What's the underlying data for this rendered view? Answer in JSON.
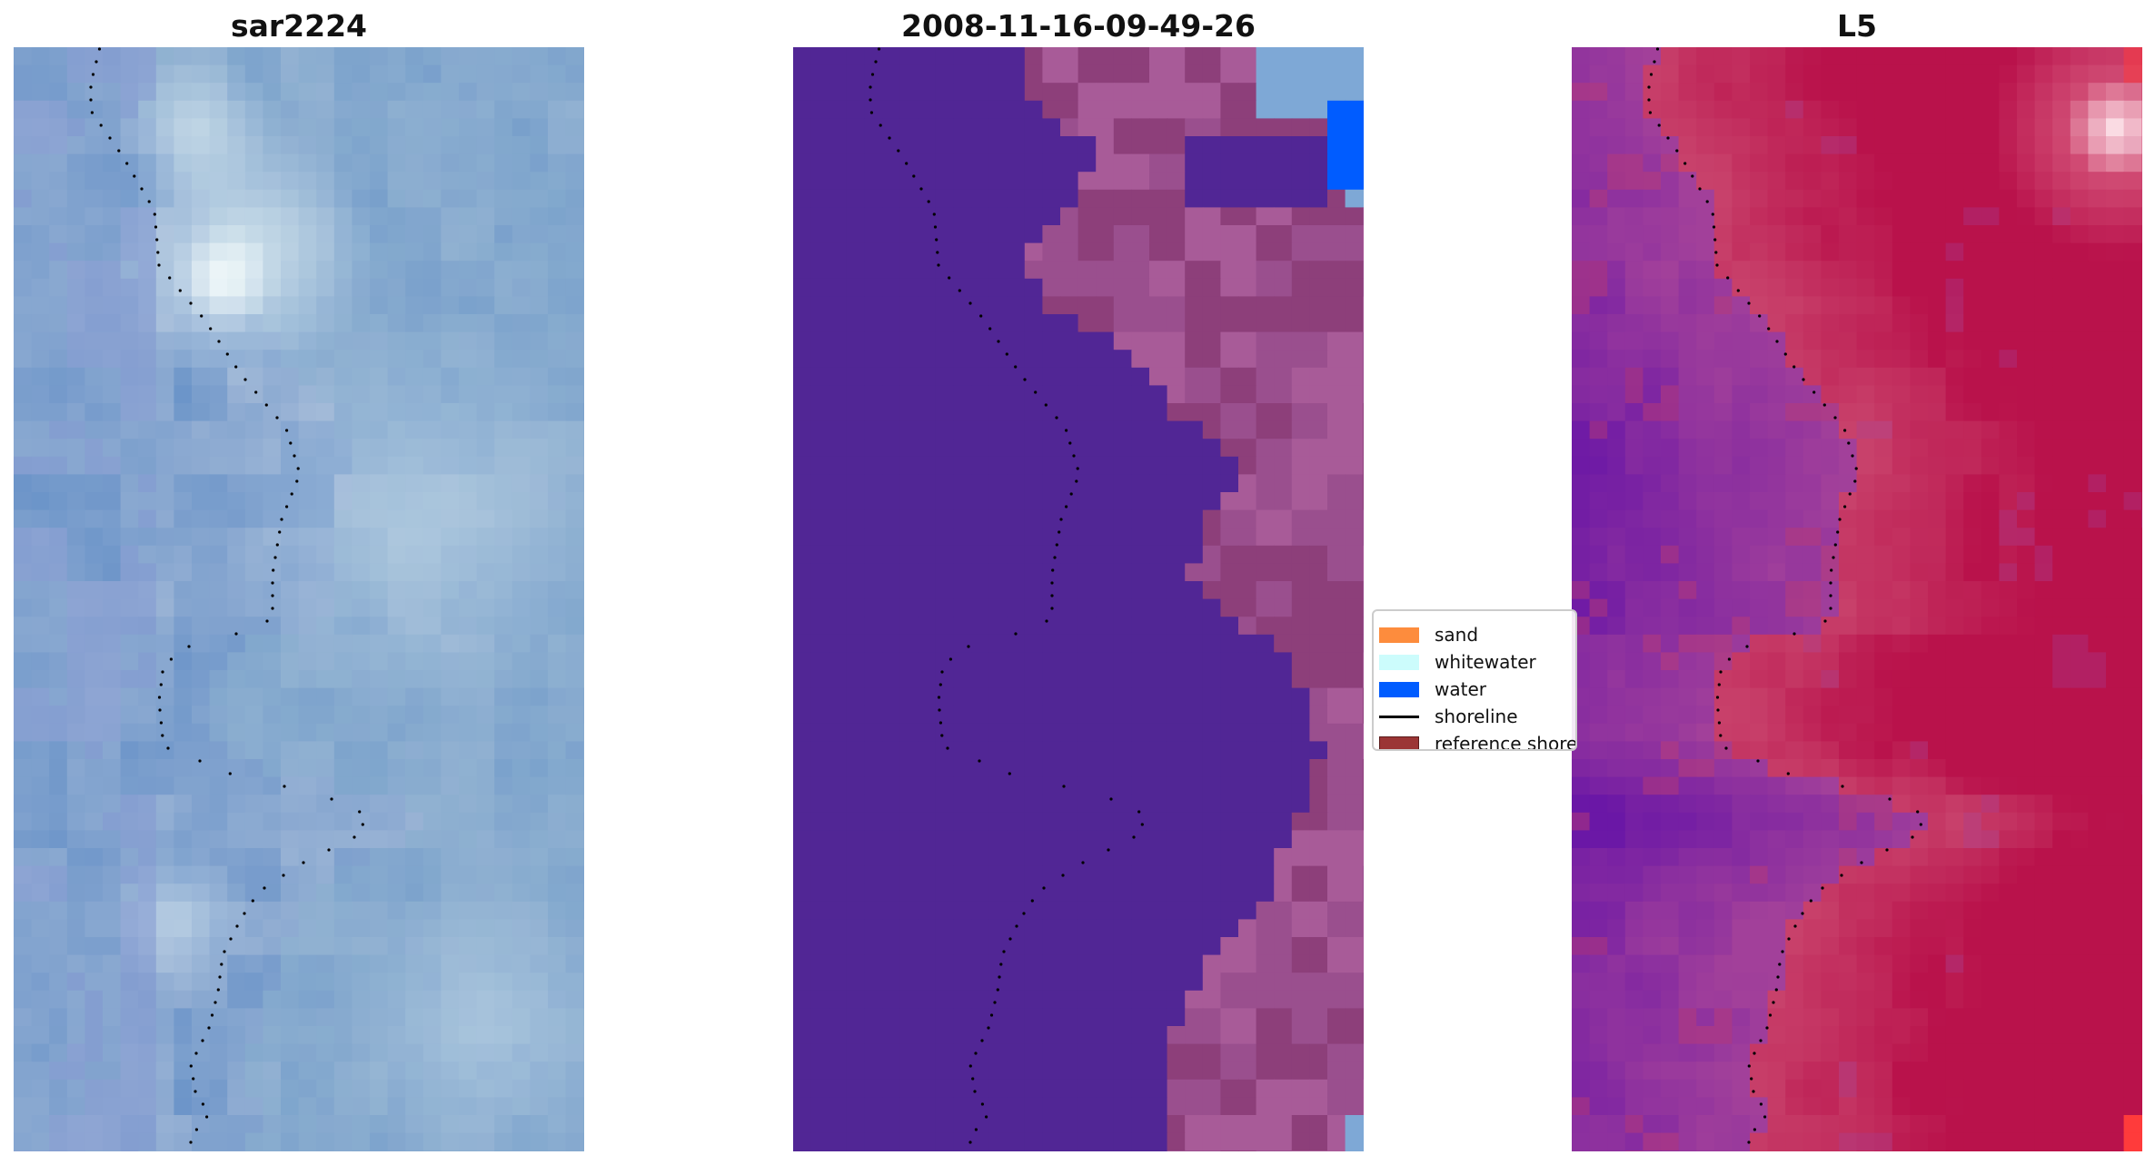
{
  "figure": {
    "panels": [
      {
        "title": "sar2224",
        "kind": "rgb",
        "colors": [
          "#6a93c8",
          "#9eb6d6",
          "#d8e8ef",
          "#f4fbfb",
          "#7b8fd0",
          "#8bb1cf"
        ]
      },
      {
        "title": "2008-11-16-09-49-26",
        "kind": "classified",
        "colors": {
          "background": "#512695",
          "sand_blend": "#9a4f8e",
          "dark_blend": "#8d3f7a",
          "light_blend": "#a85b98",
          "water": "#005cff",
          "light_water": "#7ea8d6"
        }
      },
      {
        "title": "L5",
        "kind": "index",
        "colors": [
          "#b9124b",
          "#c8416b",
          "#a2409a",
          "#6a17a6",
          "#e37a95",
          "#fbe1e8",
          "#ff3b3b"
        ]
      }
    ],
    "shoreline": {
      "color": "#000000",
      "style": "dotted"
    }
  },
  "legend": {
    "items": [
      {
        "label": "sand",
        "color": "#fd8c3d",
        "type": "patch"
      },
      {
        "label": "whitewater",
        "color": "#ccfcfc",
        "type": "patch"
      },
      {
        "label": "water",
        "color": "#005cff",
        "type": "patch"
      },
      {
        "label": "shoreline",
        "color": "#000000",
        "type": "line"
      },
      {
        "label": "reference shoreline",
        "color": "#9b3535",
        "type": "patch"
      }
    ]
  }
}
